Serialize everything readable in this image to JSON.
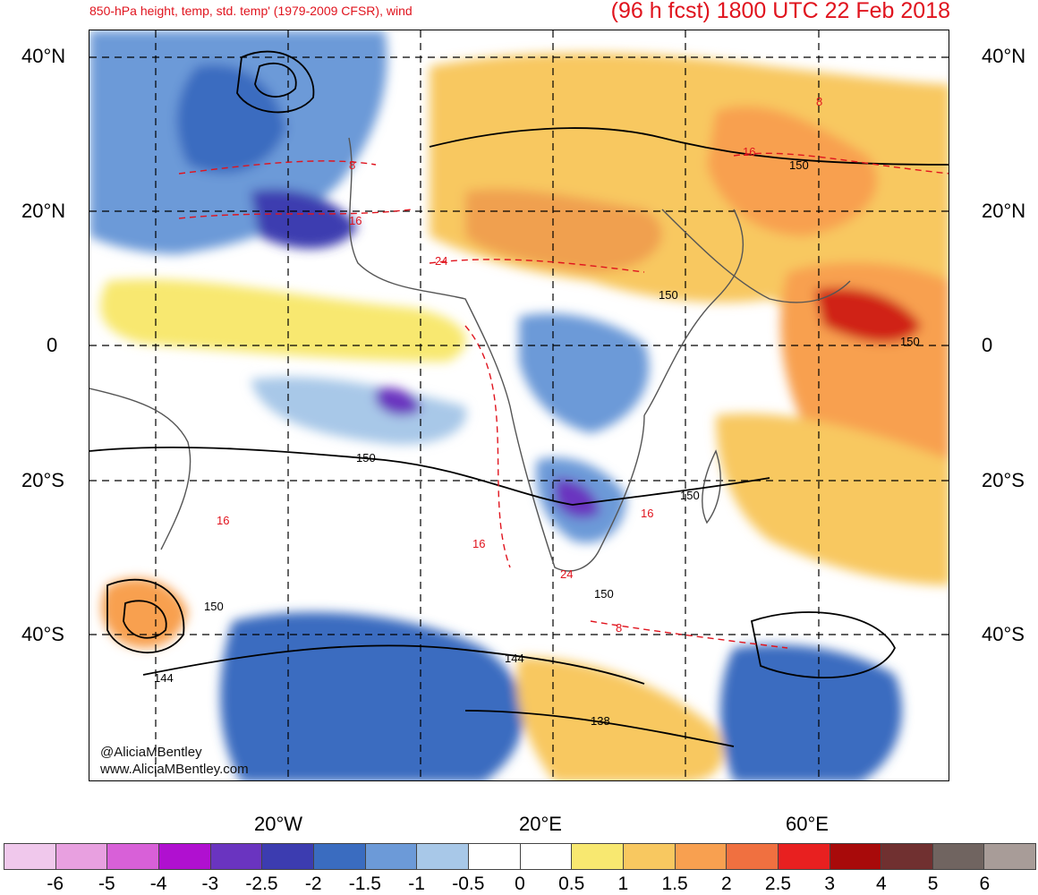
{
  "header": {
    "left_title": "850-hPa height, temp, std. temp' (1979-2009 CFSR), wind",
    "right_title": "(96 h fcst) 1800 UTC 22 Feb 2018"
  },
  "axes": {
    "lat_labels": [
      "40°N",
      "20°N",
      "0",
      "20°S",
      "40°S"
    ],
    "lon_labels": [
      "20°W",
      "20°E",
      "60°E"
    ]
  },
  "credit": {
    "handle": "@AliciaMBentley",
    "url": "www.AliciaMBentley.com"
  },
  "contours": {
    "height_labels": [
      "150",
      "150",
      "150",
      "150",
      "150",
      "150",
      "150",
      "144",
      "144",
      "138"
    ],
    "temp_labels": [
      "8",
      "16",
      "24",
      "16",
      "16",
      "16",
      "24",
      "8",
      "8",
      "16"
    ]
  },
  "colorbar": {
    "colors": [
      "#f0c8ec",
      "#e8a0e0",
      "#d860d8",
      "#b010d0",
      "#6a34c0",
      "#3c3cb0",
      "#3a6cc0",
      "#6c9ad8",
      "#a8c8e8",
      "#ffffff",
      "#ffffff",
      "#f8e870",
      "#f8c860",
      "#f8a050",
      "#f07040",
      "#e82020",
      "#a80a0a",
      "#703030",
      "#706460",
      "#a89c98"
    ],
    "tick_labels": [
      "-6",
      "-5",
      "-4",
      "-3",
      "-2.5",
      "-2",
      "-1.5",
      "-1",
      "-0.5",
      "0",
      "0.5",
      "1",
      "1.5",
      "2",
      "2.5",
      "3",
      "4",
      "5",
      "6"
    ]
  }
}
